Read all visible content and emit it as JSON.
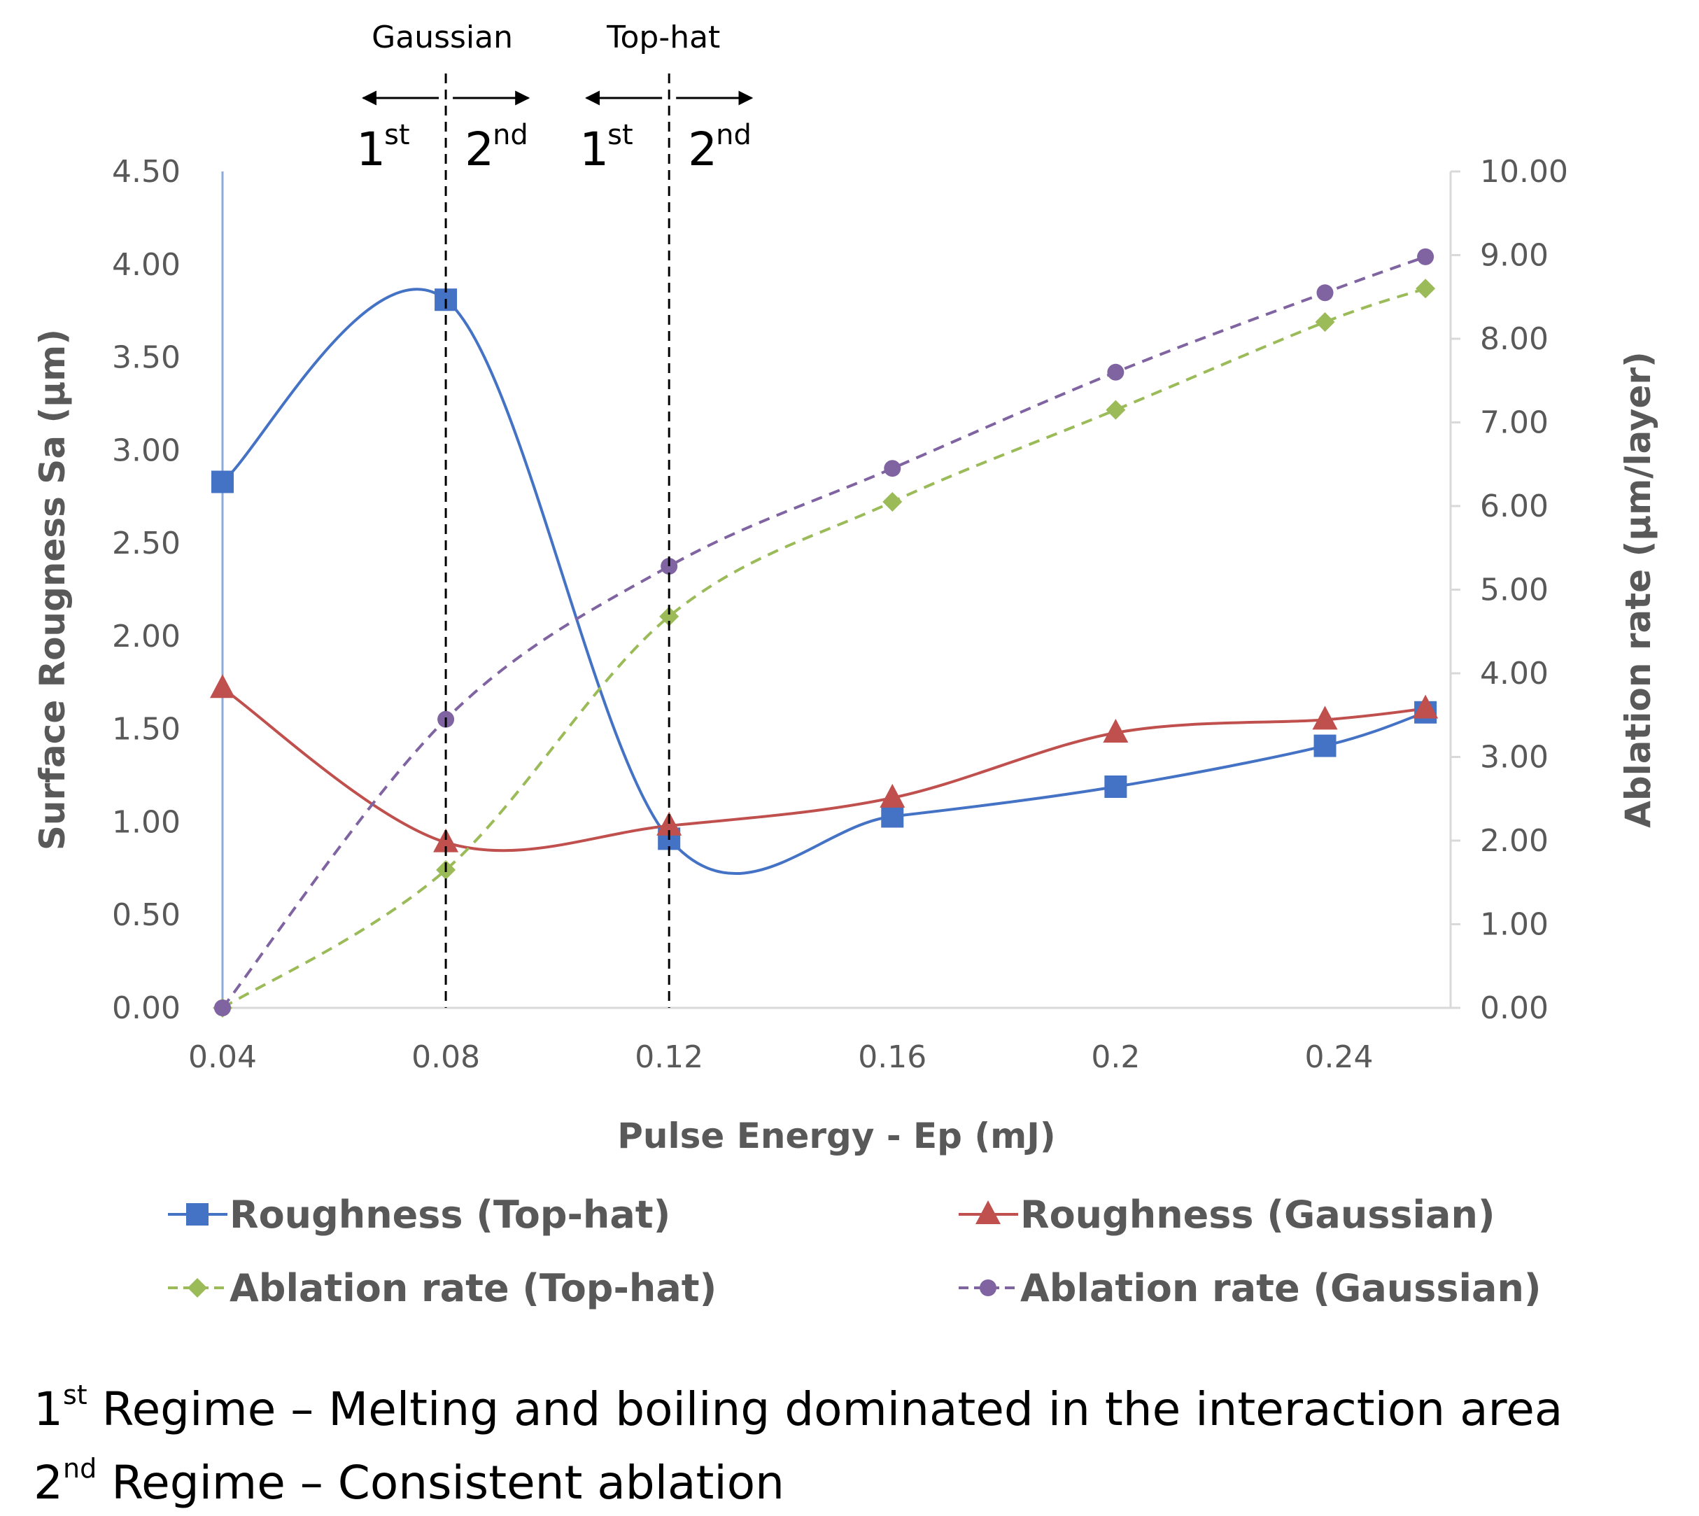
{
  "chart_data": {
    "type": "line",
    "title": "",
    "xlabel": "Pulse Energy - Ep (mJ)",
    "ylabel_left": "Surface Rougness Sa (µm)",
    "ylabel_right": "Ablation rate (µm/layer)",
    "x_ticks": [
      0.04,
      0.08,
      0.12,
      0.16,
      0.2,
      0.24
    ],
    "x_tick_labels": [
      "0.04",
      "0.08",
      "0.12",
      "0.16",
      "0.2",
      "0.24"
    ],
    "xlim": [
      0.04,
      0.26
    ],
    "y_left_ticks": [
      "0.00",
      "0.50",
      "1.00",
      "1.50",
      "2.00",
      "2.50",
      "3.00",
      "3.50",
      "4.00",
      "4.50"
    ],
    "ylim_left": [
      0,
      4.5
    ],
    "y_right_ticks": [
      "0.00",
      "1.00",
      "2.00",
      "3.00",
      "4.00",
      "5.00",
      "6.00",
      "7.00",
      "8.00",
      "9.00",
      "10.00"
    ],
    "ylim_right": [
      0,
      10
    ],
    "series": [
      {
        "name": "Roughness (Top-hat)",
        "axis": "left",
        "color": "#4472C4",
        "marker": "square",
        "style": "solid",
        "x": [
          0.04,
          0.08,
          0.12,
          0.16,
          0.2,
          0.2375,
          0.2555
        ],
        "y": [
          2.83,
          3.81,
          0.91,
          1.03,
          1.19,
          1.41,
          1.59
        ]
      },
      {
        "name": "Roughness (Gaussian)",
        "axis": "left",
        "color": "#C0504D",
        "marker": "triangle",
        "style": "solid",
        "x": [
          0.04,
          0.08,
          0.12,
          0.16,
          0.2,
          0.2375,
          0.2555
        ],
        "y": [
          1.72,
          0.89,
          0.98,
          1.13,
          1.48,
          1.55,
          1.61
        ]
      },
      {
        "name": "Ablation rate (Top-hat)",
        "axis": "right",
        "color": "#9BBB59",
        "marker": "diamond",
        "style": "dashed",
        "x": [
          0.04,
          0.08,
          0.12,
          0.16,
          0.2,
          0.2375,
          0.2555
        ],
        "y": [
          0.0,
          1.65,
          4.68,
          6.05,
          7.15,
          8.2,
          8.6
        ]
      },
      {
        "name": "Ablation rate (Gaussian)",
        "axis": "right",
        "color": "#8064A2",
        "marker": "circle",
        "style": "dashed",
        "x": [
          0.04,
          0.08,
          0.12,
          0.16,
          0.2,
          0.2375,
          0.2555
        ],
        "y": [
          0.0,
          3.45,
          5.28,
          6.45,
          7.6,
          8.55,
          8.98
        ]
      }
    ],
    "regime_lines_x": [
      0.08,
      0.12
    ],
    "annotations": {
      "gaussian_label": "Gaussian",
      "tophat_label": "Top-hat",
      "first_num": "1",
      "first_sup": "st",
      "second_num": "2",
      "second_sup": "nd"
    },
    "legend_position": "bottom"
  },
  "footnotes": [
    {
      "num": "1",
      "sup": "st",
      "text": " Regime – Melting and boiling dominated in the interaction area"
    },
    {
      "num": "2",
      "sup": "nd",
      "text": " Regime – Consistent ablation"
    }
  ]
}
